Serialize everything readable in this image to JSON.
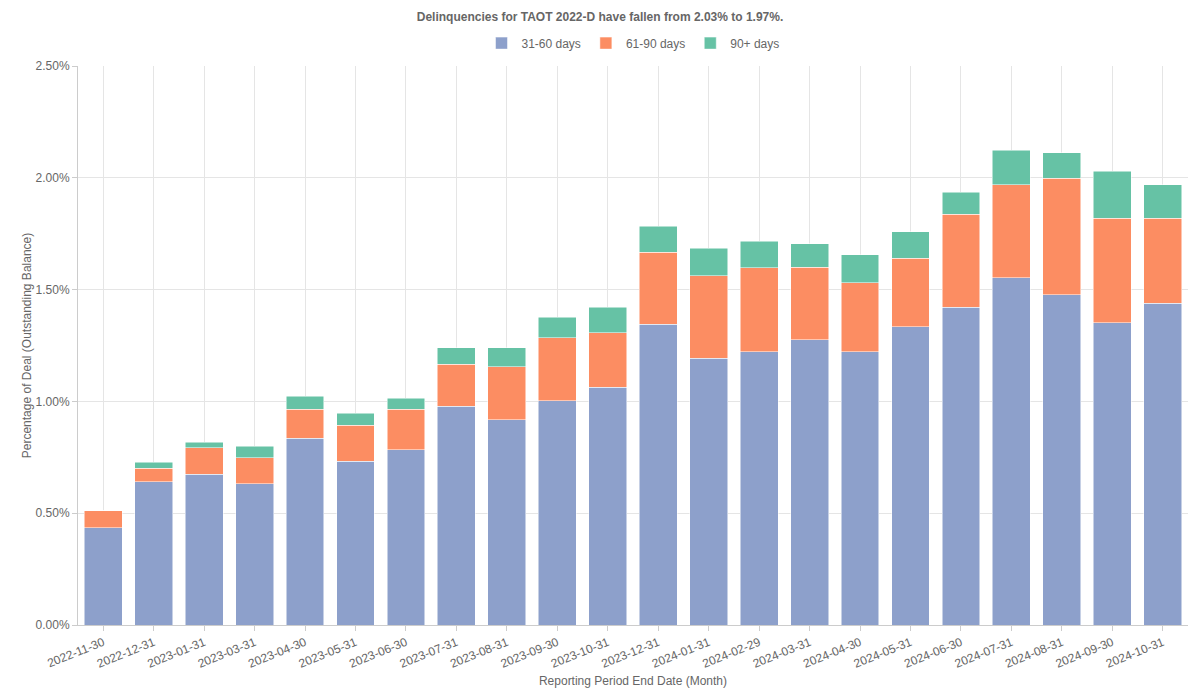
{
  "chart_data": {
    "type": "bar",
    "title": "Delinquencies for TAOT 2022-D have fallen from 2.03% to 1.97%.",
    "x_label": "Reporting Period End Date (Month)",
    "y_label": "Percentage of Deal (Outstanding Balance)",
    "categories": [
      "2022-11-30",
      "2022-12-31",
      "2023-01-31",
      "2023-03-31",
      "2023-04-30",
      "2023-05-31",
      "2023-06-30",
      "2023-07-31",
      "2023-08-31",
      "2023-09-30",
      "2023-10-31",
      "2023-12-31",
      "2024-01-31",
      "2024-02-29",
      "2024-03-31",
      "2024-04-30",
      "2024-05-31",
      "2024-06-30",
      "2024-07-31",
      "2024-08-31",
      "2024-09-30",
      "2024-10-31"
    ],
    "series": [
      {
        "name": "31-60 days",
        "color": "#8da0cb",
        "values": [
          0.434,
          0.64,
          0.675,
          0.631,
          0.836,
          0.733,
          0.783,
          0.979,
          0.917,
          1.002,
          1.064,
          1.346,
          1.194,
          1.221,
          1.275,
          1.221,
          1.333,
          1.422,
          1.552,
          1.476,
          1.351,
          1.44
        ]
      },
      {
        "name": "61-90 days",
        "color": "#fc8d62",
        "values": [
          0.076,
          0.062,
          0.117,
          0.116,
          0.13,
          0.161,
          0.183,
          0.188,
          0.237,
          0.282,
          0.242,
          0.322,
          0.367,
          0.376,
          0.326,
          0.309,
          0.308,
          0.416,
          0.416,
          0.523,
          0.469,
          0.38
        ]
      },
      {
        "name": "90+ days",
        "color": "#66c2a5",
        "values": [
          0,
          0.027,
          0.026,
          0.053,
          0.058,
          0.054,
          0.049,
          0.072,
          0.085,
          0.093,
          0.116,
          0.116,
          0.125,
          0.12,
          0.103,
          0.125,
          0.117,
          0.098,
          0.156,
          0.112,
          0.21,
          0.148
        ]
      }
    ],
    "ylim": [
      0,
      2.5
    ],
    "yticks": [
      {
        "value": 0,
        "label": "0.00%"
      },
      {
        "value": 0.5,
        "label": "0.50%"
      },
      {
        "value": 1,
        "label": "1.00%"
      },
      {
        "value": 1.5,
        "label": "1.50%"
      },
      {
        "value": 2,
        "label": "2.00%"
      },
      {
        "value": 2.5,
        "label": "2.50%"
      }
    ],
    "stacked": true,
    "grid": true,
    "legend": "top"
  }
}
